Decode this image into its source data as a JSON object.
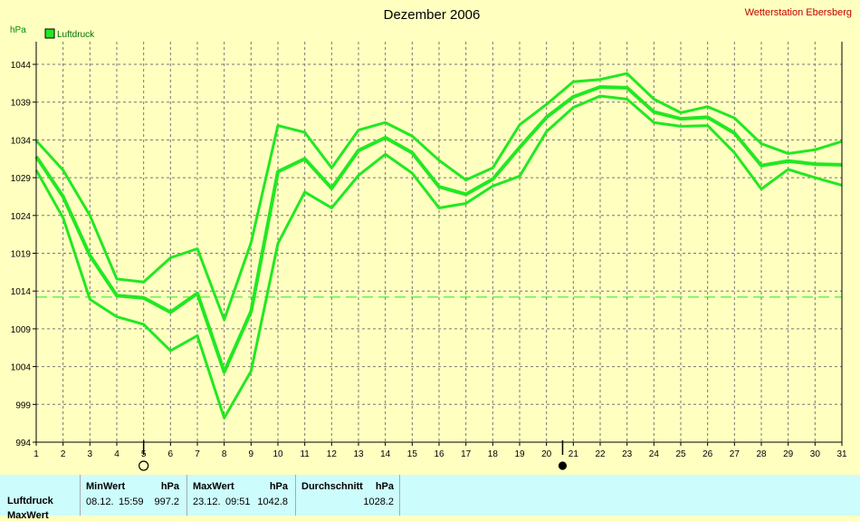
{
  "colors": {
    "series": "#22e822",
    "background": "#ffffc0",
    "panel": "#ccfcfc",
    "station": "#c00000"
  },
  "chart_data": {
    "type": "line",
    "title": "Dezember 2006",
    "station": "Wetterstation Ebersberg",
    "ylabel": "hPa",
    "legend": "Luftdruck",
    "legend_position": "top-left",
    "grid": true,
    "x": [
      1,
      2,
      3,
      4,
      5,
      6,
      7,
      8,
      9,
      10,
      11,
      12,
      13,
      14,
      15,
      16,
      17,
      18,
      19,
      20,
      21,
      22,
      23,
      24,
      25,
      26,
      27,
      28,
      29,
      30,
      31
    ],
    "xlim": [
      1,
      31
    ],
    "ylim": [
      994,
      1047
    ],
    "yticks": [
      994,
      999,
      1004,
      1009,
      1014,
      1019,
      1024,
      1029,
      1034,
      1039,
      1044
    ],
    "reference_line": 1013.2,
    "moon_markers": [
      {
        "x": 5,
        "phase": "full-moon"
      },
      {
        "x": 20.6,
        "phase": "new-moon"
      }
    ],
    "series": [
      {
        "role": "max",
        "values": [
          1033.9,
          1030.0,
          1024.0,
          1015.6,
          1015.2,
          1018.4,
          1019.6,
          1010.2,
          1020.4,
          1035.9,
          1035.0,
          1030.3,
          1035.3,
          1036.3,
          1034.5,
          1031.3,
          1028.7,
          1030.3,
          1036.0,
          1038.7,
          1041.7,
          1042.0,
          1042.8,
          1039.4,
          1037.6,
          1038.4,
          1036.9,
          1033.5,
          1032.2,
          1032.7,
          1033.8
        ]
      },
      {
        "role": "avg",
        "values": [
          1031.8,
          1026.5,
          1018.7,
          1013.4,
          1013.1,
          1011.2,
          1013.7,
          1003.3,
          1011.3,
          1029.8,
          1031.5,
          1027.6,
          1032.6,
          1034.3,
          1032.3,
          1027.8,
          1026.8,
          1028.8,
          1033.0,
          1037.0,
          1039.7,
          1041.0,
          1040.9,
          1037.7,
          1036.8,
          1037.0,
          1034.9,
          1030.6,
          1031.2,
          1030.8,
          1030.7
        ]
      },
      {
        "role": "min",
        "values": [
          1030.0,
          1023.7,
          1012.9,
          1010.6,
          1009.6,
          1006.1,
          1008.1,
          997.2,
          1003.4,
          1020.3,
          1027.1,
          1025.0,
          1029.3,
          1032.1,
          1029.6,
          1025.0,
          1025.6,
          1027.9,
          1029.2,
          1035.1,
          1038.3,
          1039.8,
          1039.4,
          1036.3,
          1035.8,
          1035.9,
          1032.3,
          1027.5,
          1030.1,
          1029.0,
          1028.0
        ]
      }
    ]
  },
  "stats": {
    "row_label": "Luftdruck",
    "row2_label": "MaxWert",
    "min_header": "MinWert",
    "min_unit": "hPa",
    "min_date": "08.12.",
    "min_time": "15:59",
    "min_value": "997.2",
    "max_header": "MaxWert",
    "max_unit": "hPa",
    "max_date": "23.12.",
    "max_time": "09:51",
    "max_value": "1042.8",
    "avg_header": "Durchschnitt",
    "avg_unit": "hPa",
    "avg_value": "1028.2"
  }
}
